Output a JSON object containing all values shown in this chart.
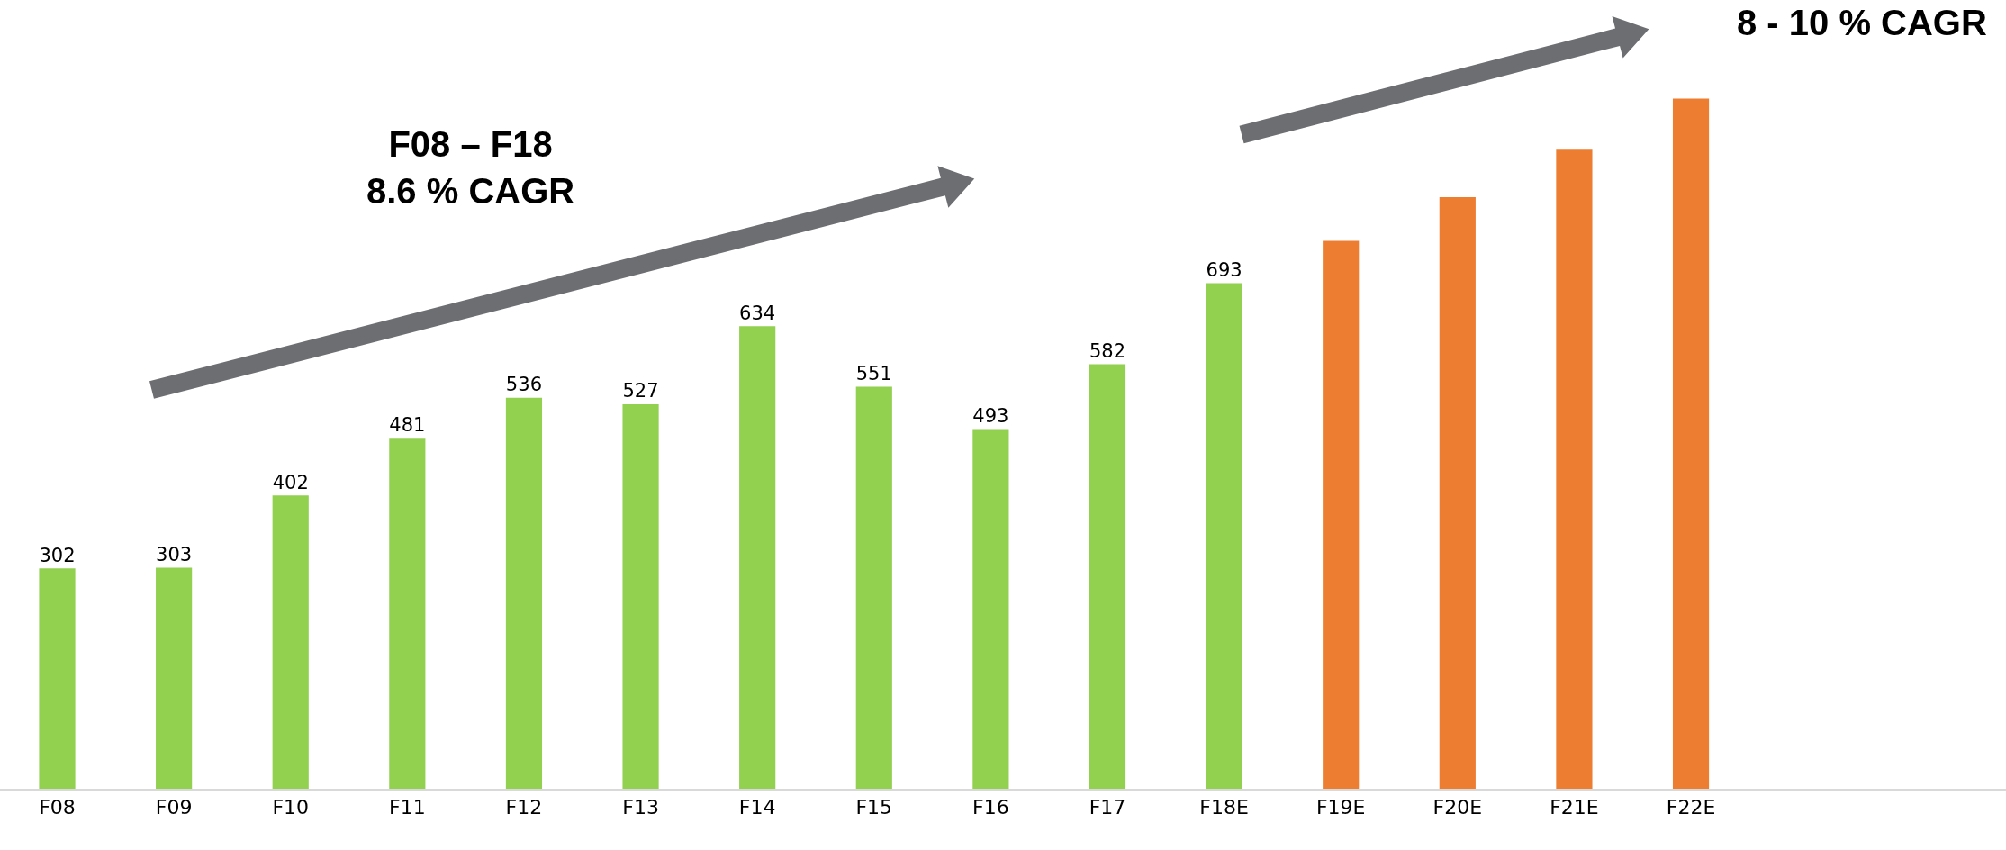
{
  "chart_data": {
    "type": "bar",
    "categories": [
      "F08",
      "F09",
      "F10",
      "F11",
      "F12",
      "F13",
      "F14",
      "F15",
      "F16",
      "F17",
      "F18E",
      "F19E",
      "F20E",
      "F21E",
      "F22E"
    ],
    "values": [
      302,
      303,
      402,
      481,
      536,
      527,
      634,
      551,
      493,
      582,
      693,
      751,
      811,
      876,
      946
    ],
    "colors": [
      "#92d050",
      "#92d050",
      "#92d050",
      "#92d050",
      "#92d050",
      "#92d050",
      "#92d050",
      "#92d050",
      "#92d050",
      "#92d050",
      "#92d050",
      "#ed7d31",
      "#ed7d31",
      "#ed7d31",
      "#ed7d31"
    ],
    "value_labels": [
      "302",
      "303",
      "402",
      "481",
      "536",
      "527",
      "634",
      "551",
      "493",
      "582",
      "693",
      null,
      null,
      null,
      null
    ],
    "annotations": [
      "F08 – F18\n8.6 % CAGR",
      "8 - 10 % CAGR"
    ],
    "grid": false
  }
}
